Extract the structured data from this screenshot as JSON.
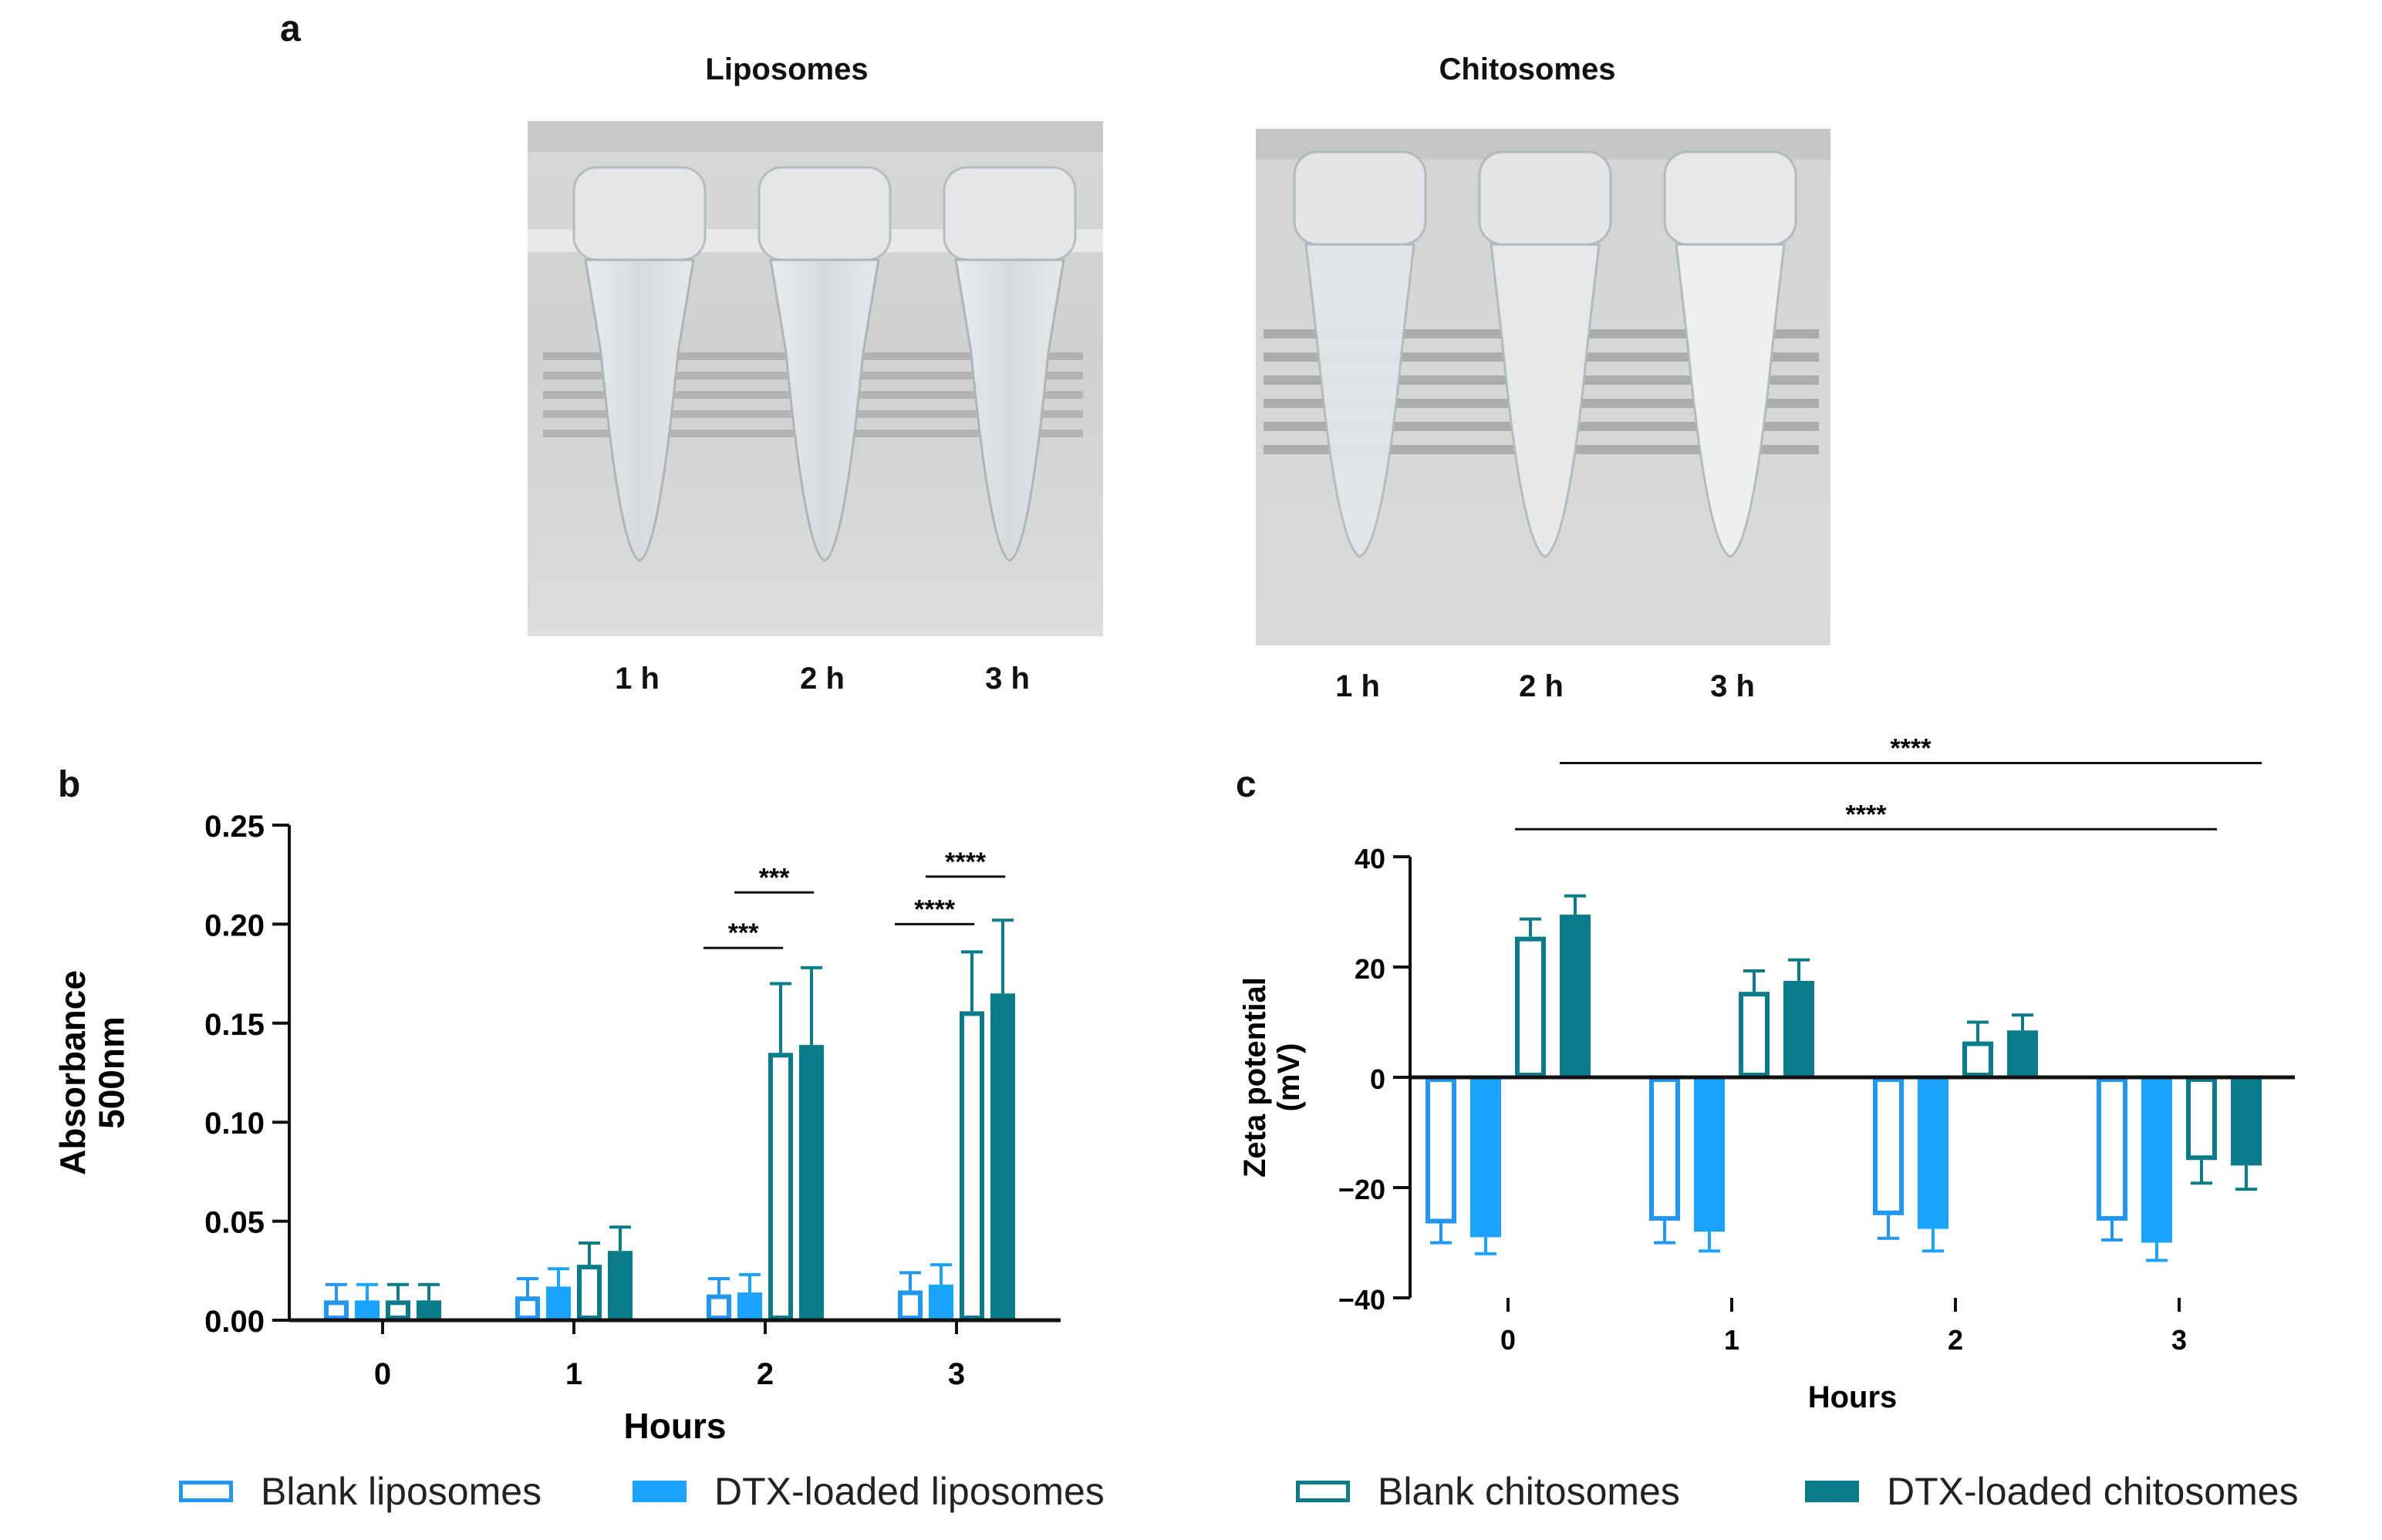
{
  "panels": {
    "a": "a",
    "b": "b",
    "c": "c"
  },
  "photos": {
    "liposomes": {
      "title": "Liposomes",
      "times": [
        "1 h",
        "2 h",
        "3 h"
      ]
    },
    "chitosomes": {
      "title": "Chitosomes",
      "times": [
        "1 h",
        "2 h",
        "3 h"
      ]
    }
  },
  "colors": {
    "blank_liposomes": "#2196f3",
    "dtx_liposomes": "#1aa3ff",
    "blank_chitosomes": "#0b7d8a",
    "dtx_chitosomes": "#0b7d8a"
  },
  "legend": [
    {
      "label": "Blank liposomes",
      "style": "outline",
      "color": "#2196f3"
    },
    {
      "label": "DTX-loaded liposomes",
      "style": "filled",
      "color": "#1aa3ff"
    },
    {
      "label": "Blank chitosomes",
      "style": "outline",
      "color": "#0b7d8a"
    },
    {
      "label": "DTX-loaded chitosomes",
      "style": "filled",
      "color": "#0b7d8a"
    }
  ],
  "chart_data": [
    {
      "id": "b",
      "type": "bar",
      "title": "",
      "xlabel": "Hours",
      "ylabel": "Absorbance 500nm",
      "ylabel_lines": [
        "Absorbance",
        "500nm"
      ],
      "categories": [
        "0",
        "1",
        "2",
        "3"
      ],
      "ylim": [
        0,
        0.25
      ],
      "yticks": [
        0.0,
        0.05,
        0.1,
        0.15,
        0.2,
        0.25
      ],
      "ytick_labels": [
        "0.00",
        "0.05",
        "0.10",
        "0.15",
        "0.20",
        "0.25"
      ],
      "series": [
        {
          "name": "Blank liposomes",
          "values": [
            0.01,
            0.012,
            0.013,
            0.015
          ],
          "errors": [
            0.008,
            0.009,
            0.008,
            0.009
          ]
        },
        {
          "name": "DTX-loaded liposomes",
          "values": [
            0.01,
            0.017,
            0.014,
            0.018
          ],
          "errors": [
            0.008,
            0.009,
            0.009,
            0.01
          ]
        },
        {
          "name": "Blank chitosomes",
          "values": [
            0.01,
            0.028,
            0.135,
            0.156
          ],
          "errors": [
            0.008,
            0.011,
            0.035,
            0.03
          ]
        },
        {
          "name": "DTX-loaded chitosomes",
          "values": [
            0.01,
            0.035,
            0.139,
            0.165
          ],
          "errors": [
            0.008,
            0.012,
            0.039,
            0.037
          ]
        }
      ],
      "significance": [
        {
          "label": "***",
          "category": "2",
          "from_series": 0,
          "to_series": 2,
          "y": 0.188
        },
        {
          "label": "***",
          "category": "2",
          "from_series": 1,
          "to_series": 3,
          "y": 0.216
        },
        {
          "label": "****",
          "category": "3",
          "from_series": 0,
          "to_series": 2,
          "y": 0.2
        },
        {
          "label": "****",
          "category": "3",
          "from_series": 1,
          "to_series": 3,
          "y": 0.224
        }
      ]
    },
    {
      "id": "c",
      "type": "bar",
      "title": "",
      "xlabel": "Hours",
      "ylabel": "Zeta potential (mV)",
      "ylabel_lines": [
        "Zeta potential",
        "(mV)"
      ],
      "categories": [
        "0",
        "1",
        "2",
        "3"
      ],
      "ylim": [
        -40,
        40
      ],
      "yticks": [
        -40,
        -20,
        0,
        20,
        40
      ],
      "ytick_labels": [
        "−40",
        "−20",
        "0",
        "20",
        "40"
      ],
      "series": [
        {
          "name": "Blank liposomes",
          "values": [
            -26.5,
            -26.0,
            -25.0,
            -26.0
          ],
          "errors": [
            3.5,
            4.0,
            4.2,
            3.5
          ]
        },
        {
          "name": "DTX-loaded liposomes",
          "values": [
            -29.0,
            -28.0,
            -27.5,
            -30.0
          ],
          "errors": [
            3.0,
            3.5,
            4.0,
            3.2
          ]
        },
        {
          "name": "Blank chitosomes",
          "values": [
            25.5,
            15.5,
            6.5,
            -15.0
          ],
          "errors": [
            3.2,
            3.8,
            3.5,
            4.2
          ]
        },
        {
          "name": "DTX-loaded chitosomes",
          "values": [
            29.5,
            17.5,
            8.5,
            -16.0
          ],
          "errors": [
            3.4,
            3.8,
            2.8,
            4.3
          ]
        }
      ],
      "significance": [
        {
          "label": "****",
          "y": 57,
          "from": {
            "category": "0",
            "series": 3
          },
          "to": {
            "category": "3",
            "series": 3
          }
        },
        {
          "label": "****",
          "y": 45,
          "from": {
            "category": "0",
            "series": 2
          },
          "to": {
            "category": "3",
            "series": 2
          }
        }
      ]
    }
  ]
}
